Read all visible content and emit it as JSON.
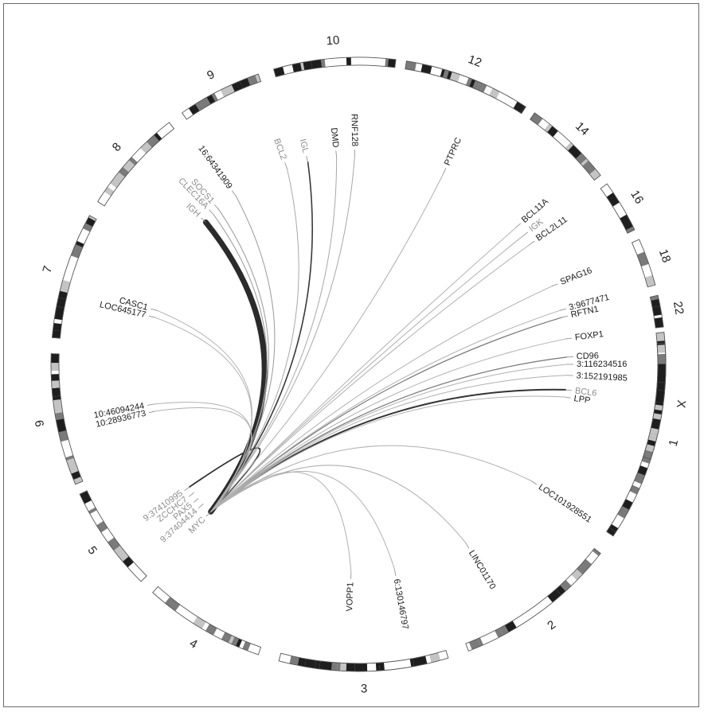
{
  "chromosomes": [
    {
      "name": "1",
      "start": 84,
      "end": 124
    },
    {
      "name": "2",
      "start": 128,
      "end": 159
    },
    {
      "name": "3",
      "start": 163,
      "end": 195
    },
    {
      "name": "4",
      "start": 199,
      "end": 222
    },
    {
      "name": "5",
      "start": 225,
      "end": 245
    },
    {
      "name": "6",
      "start": 247,
      "end": 272
    },
    {
      "name": "7",
      "start": 275,
      "end": 299
    },
    {
      "name": "8",
      "start": 302,
      "end": 322
    },
    {
      "name": "9",
      "start": 325,
      "end": 341
    },
    {
      "name": "10",
      "start": 344,
      "end": 367
    },
    {
      "name": "12",
      "start": 369,
      "end": 393
    },
    {
      "name": "14",
      "start": 395,
      "end": 412
    },
    {
      "name": "16",
      "start": 414,
      "end": 424
    },
    {
      "name": "18",
      "start": 426,
      "end": 435
    },
    {
      "name": "22",
      "start": 437,
      "end": 443
    },
    {
      "name": "X",
      "start": 446,
      "end": 468
    }
  ],
  "genes": [
    {
      "name": "PTPRC",
      "angle": 24,
      "color": "dark"
    },
    {
      "name": "BCL11A",
      "angle": 49,
      "color": "dark"
    },
    {
      "name": "IGK",
      "angle": 52,
      "color": "gray"
    },
    {
      "name": "BCL2L11",
      "angle": 55,
      "color": "dark"
    },
    {
      "name": "SPAG16",
      "angle": 68,
      "color": "dark"
    },
    {
      "name": "3:9677471",
      "angle": 75,
      "color": "dark"
    },
    {
      "name": "RFTN1",
      "angle": 77,
      "color": "dark"
    },
    {
      "name": "FOXP1",
      "angle": 83,
      "color": "dark"
    },
    {
      "name": "CD96",
      "angle": 88,
      "color": "dark"
    },
    {
      "name": "3:116234516",
      "angle": 90,
      "color": "dark"
    },
    {
      "name": "3:152191985",
      "angle": 93,
      "color": "dark"
    },
    {
      "name": "BCL6",
      "angle": 97,
      "color": "gray"
    },
    {
      "name": "LPP",
      "angle": 99,
      "color": "dark"
    },
    {
      "name": "LOC101928551",
      "angle": 124,
      "color": "dark"
    },
    {
      "name": "LINC01170",
      "angle": 149,
      "color": "dark"
    },
    {
      "name": "6:130146797",
      "angle": 170,
      "color": "dark"
    },
    {
      "name": "VOPP1",
      "angle": 182,
      "color": "dark"
    },
    {
      "name": "MYC",
      "angle": 225,
      "color": "gray"
    },
    {
      "name": "9:37404414",
      "angle": 228,
      "color": "gray"
    },
    {
      "name": "PAX5",
      "angle": 230,
      "color": "gray"
    },
    {
      "name": "ZCCHC7",
      "angle": 232,
      "color": "gray"
    },
    {
      "name": "9:37410995",
      "angle": 234,
      "color": "gray"
    },
    {
      "name": "10:28936773",
      "angle": 257,
      "color": "dark"
    },
    {
      "name": "10:46094244",
      "angle": 259,
      "color": "dark"
    },
    {
      "name": "LOC645177",
      "angle": 283,
      "color": "dark"
    },
    {
      "name": "CASC1",
      "angle": 285,
      "color": "dark"
    },
    {
      "name": "IGH",
      "angle": 313,
      "color": "gray"
    },
    {
      "name": "CLEC16A",
      "angle": 316,
      "color": "gray"
    },
    {
      "name": "SOCS1",
      "angle": 318,
      "color": "gray"
    },
    {
      "name": "16:64341909",
      "angle": 324,
      "color": "dark"
    },
    {
      "name": "BCL2",
      "angle": 340,
      "color": "gray"
    },
    {
      "name": "IGL",
      "angle": 346,
      "color": "gray"
    },
    {
      "name": "DMD",
      "angle": 354,
      "color": "dark"
    },
    {
      "name": "RNF128",
      "angle": 359,
      "color": "dark"
    }
  ],
  "links": [
    {
      "from": "MYC",
      "to": "IGH",
      "weight": 7,
      "tone": "#2b2b2b"
    },
    {
      "from": "MYC",
      "to": "IGL",
      "weight": 1.6,
      "tone": "#3a3a3a"
    },
    {
      "from": "MYC",
      "to": "BCL6",
      "weight": 2,
      "tone": "#333333"
    },
    {
      "from": "MYC",
      "to": "9:37410995",
      "weight": 1.8,
      "tone": "#333333"
    },
    {
      "from": "MYC",
      "to": "CD96",
      "weight": 1.2,
      "tone": "#777777"
    },
    {
      "from": "MYC",
      "to": "RFTN1",
      "weight": 1.2,
      "tone": "#777777"
    },
    {
      "from": "MYC",
      "to": "SOCS1",
      "weight": 1,
      "tone": "#9a9a9a"
    },
    {
      "from": "MYC",
      "to": "CLEC16A",
      "weight": 1,
      "tone": "#9a9a9a"
    },
    {
      "from": "MYC",
      "to": "16:64341909",
      "weight": 1,
      "tone": "#9a9a9a"
    },
    {
      "from": "MYC",
      "to": "BCL2",
      "weight": 1,
      "tone": "#a8a8a8"
    },
    {
      "from": "MYC",
      "to": "DMD",
      "weight": 1,
      "tone": "#a8a8a8"
    },
    {
      "from": "MYC",
      "to": "RNF128",
      "weight": 1,
      "tone": "#a8a8a8"
    },
    {
      "from": "MYC",
      "to": "PTPRC",
      "weight": 1,
      "tone": "#b0b0b0"
    },
    {
      "from": "MYC",
      "to": "BCL11A",
      "weight": 1,
      "tone": "#b0b0b0"
    },
    {
      "from": "MYC",
      "to": "IGK",
      "weight": 1,
      "tone": "#b0b0b0"
    },
    {
      "from": "MYC",
      "to": "BCL2L11",
      "weight": 1,
      "tone": "#b0b0b0"
    },
    {
      "from": "MYC",
      "to": "SPAG16",
      "weight": 1,
      "tone": "#b0b0b0"
    },
    {
      "from": "MYC",
      "to": "3:9677471",
      "weight": 1,
      "tone": "#b0b0b0"
    },
    {
      "from": "MYC",
      "to": "FOXP1",
      "weight": 1,
      "tone": "#b0b0b0"
    },
    {
      "from": "MYC",
      "to": "3:116234516",
      "weight": 1,
      "tone": "#b0b0b0"
    },
    {
      "from": "MYC",
      "to": "3:152191985",
      "weight": 1,
      "tone": "#b0b0b0"
    },
    {
      "from": "MYC",
      "to": "LPP",
      "weight": 1,
      "tone": "#b0b0b0"
    },
    {
      "from": "MYC",
      "to": "LOC101928551",
      "weight": 1,
      "tone": "#b0b0b0"
    },
    {
      "from": "MYC",
      "to": "LINC01170",
      "weight": 1,
      "tone": "#b0b0b0"
    },
    {
      "from": "MYC",
      "to": "6:130146797",
      "weight": 1,
      "tone": "#b0b0b0"
    },
    {
      "from": "MYC",
      "to": "VOPP1",
      "weight": 1,
      "tone": "#b0b0b0"
    },
    {
      "from": "MYC",
      "to": "10:28936773",
      "weight": 1,
      "tone": "#b0b0b0"
    },
    {
      "from": "MYC",
      "to": "10:46094244",
      "weight": 1,
      "tone": "#b0b0b0"
    },
    {
      "from": "MYC",
      "to": "LOC645177",
      "weight": 1,
      "tone": "#b0b0b0"
    },
    {
      "from": "MYC",
      "to": "CASC1",
      "weight": 1,
      "tone": "#b0b0b0"
    }
  ],
  "colors": {
    "dark_label": "#1a1a1a",
    "gray_label": "#8c8c8c",
    "ideogram_outline": "#555555",
    "band_dark": "#1e1e1e",
    "band_mid": "#7a7a7a",
    "band_light": "#c4c4c4"
  }
}
